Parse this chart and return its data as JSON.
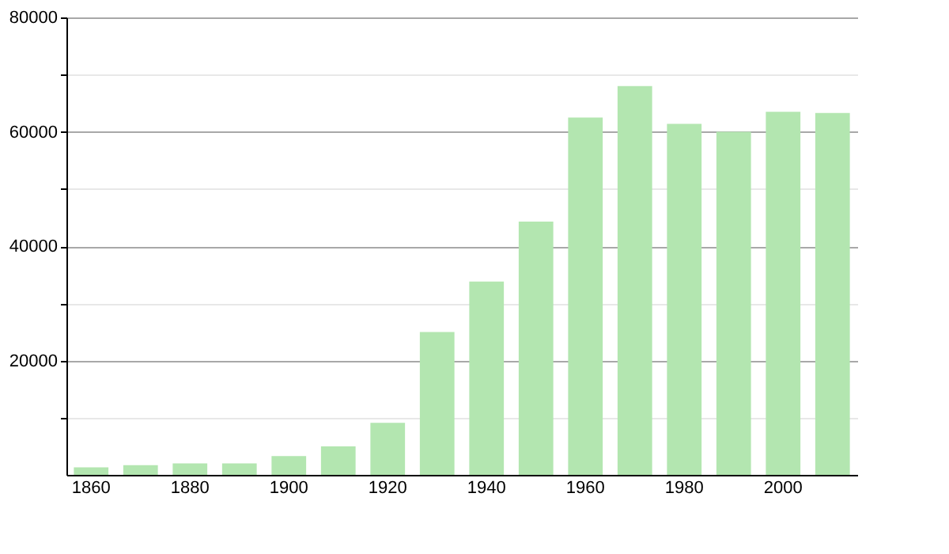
{
  "chart_data": {
    "type": "bar",
    "categories": [
      "1860",
      null,
      "1880",
      null,
      "1900",
      null,
      "1920",
      null,
      "1940",
      null,
      "1960",
      null,
      "1980",
      null,
      "2000",
      null
    ],
    "values": [
      1300,
      1700,
      2000,
      2000,
      3300,
      5000,
      9100,
      25000,
      33800,
      44300,
      62500,
      68000,
      61400,
      60000,
      63500,
      63300
    ],
    "color": "#b3e6b0",
    "ylim": [
      0,
      80000
    ],
    "yticks": [
      {
        "value": 10000,
        "label": null
      },
      20000,
      {
        "value": 30000,
        "label": null
      },
      40000,
      {
        "value": 50000,
        "label": null
      },
      60000,
      {
        "value": 70000,
        "label": null
      },
      80000
    ],
    "grid": "y"
  }
}
